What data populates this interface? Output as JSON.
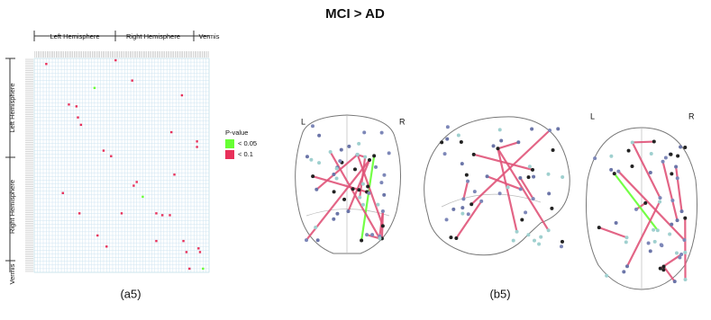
{
  "chart_data": {
    "type": "scatter",
    "title": "MCI > AD",
    "top_labels": [
      "Left Hemisphere",
      "Right Hemisphere",
      "Vermis"
    ],
    "side_labels": [
      "Left Hemisphere",
      "Right Hemisphere",
      "Vermis"
    ],
    "legend_title": "P-value",
    "xlim": [
      0,
      116
    ],
    "ylim": [
      0,
      116
    ],
    "series": [
      {
        "name": "< 0.05",
        "color": "#66ff33",
        "x": [
          40,
          72,
          112
        ],
        "y": [
          16,
          75,
          114
        ]
      },
      {
        "name": "< 0.1",
        "color": "#e8305a",
        "x": [
          8,
          54,
          65,
          98,
          23,
          28,
          29,
          31,
          91,
          108,
          108,
          46,
          51,
          93,
          68,
          66,
          19,
          58,
          30,
          81,
          85,
          90,
          42,
          81,
          48,
          99,
          101,
          109,
          110,
          103
        ],
        "y": [
          3,
          1,
          12,
          20,
          25,
          26,
          32,
          36,
          40,
          45,
          48,
          50,
          53,
          63,
          67,
          69,
          73,
          84,
          84,
          84,
          85,
          85,
          96,
          99,
          102,
          99,
          105,
          103,
          105,
          114
        ]
      }
    ]
  },
  "panels": {
    "left": "(a5)",
    "right": "(b5)"
  },
  "brain_views": [
    {
      "left": "L",
      "right": "R"
    },
    {
      "left": "L",
      "right": "R"
    }
  ]
}
